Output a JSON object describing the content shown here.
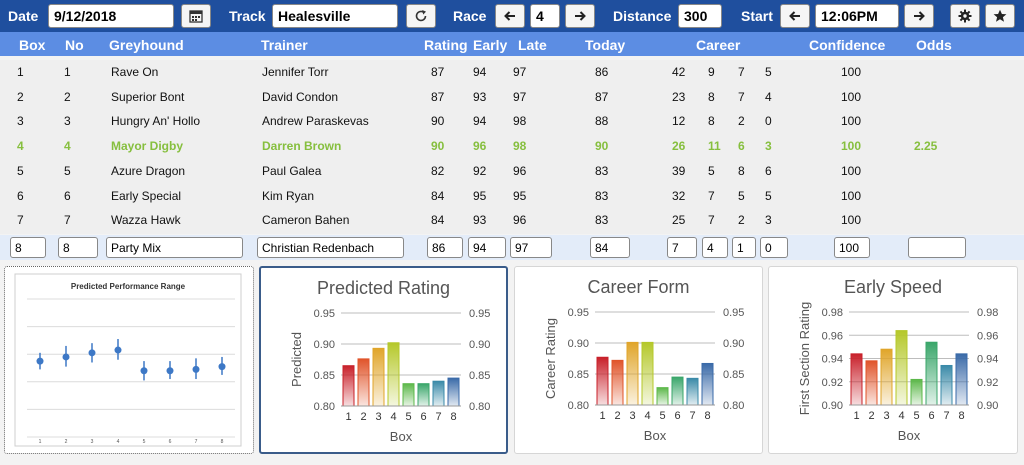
{
  "topbar": {
    "date_label": "Date",
    "date_value": "9/12/2018",
    "track_label": "Track",
    "track_value": "Healesville",
    "race_label": "Race",
    "race_value": "4",
    "distance_label": "Distance",
    "distance_value": "300",
    "start_label": "Start",
    "start_value": "12:06PM",
    "icons": [
      "calendar-icon",
      "refresh-icon",
      "arrow-left-icon",
      "arrow-right-icon",
      "gear-icon",
      "star-icon"
    ]
  },
  "columns": [
    "Box",
    "No",
    "Greyhound",
    "Trainer",
    "Rating",
    "Early",
    "Late",
    "Today",
    "Career",
    "Confidence",
    "Odds"
  ],
  "rows": [
    {
      "box": "1",
      "no": "1",
      "greyhound": "Rave On",
      "trainer": "Jennifer Torr",
      "rating": "87",
      "early": "94",
      "late": "97",
      "today": "86",
      "c1": "42",
      "c2": "9",
      "c3": "7",
      "c4": "5",
      "confidence": "100",
      "odds": ""
    },
    {
      "box": "2",
      "no": "2",
      "greyhound": "Superior Bont",
      "trainer": "David Condon",
      "rating": "87",
      "early": "93",
      "late": "97",
      "today": "87",
      "c1": "23",
      "c2": "8",
      "c3": "7",
      "c4": "4",
      "confidence": "100",
      "odds": ""
    },
    {
      "box": "3",
      "no": "3",
      "greyhound": "Hungry An' Hollo",
      "trainer": "Andrew Paraskevas",
      "rating": "90",
      "early": "94",
      "late": "98",
      "today": "88",
      "c1": "12",
      "c2": "8",
      "c3": "2",
      "c4": "0",
      "confidence": "100",
      "odds": ""
    },
    {
      "box": "4",
      "no": "4",
      "greyhound": "Mayor Digby",
      "trainer": "Darren Brown",
      "rating": "90",
      "early": "96",
      "late": "98",
      "today": "90",
      "c1": "26",
      "c2": "11",
      "c3": "6",
      "c4": "3",
      "confidence": "100",
      "odds": "2.25",
      "highlight": true
    },
    {
      "box": "5",
      "no": "5",
      "greyhound": "Azure Dragon",
      "trainer": "Paul Galea",
      "rating": "82",
      "early": "92",
      "late": "96",
      "today": "83",
      "c1": "39",
      "c2": "5",
      "c3": "8",
      "c4": "6",
      "confidence": "100",
      "odds": ""
    },
    {
      "box": "6",
      "no": "6",
      "greyhound": "Early Special",
      "trainer": "Kim Ryan",
      "rating": "84",
      "early": "95",
      "late": "95",
      "today": "83",
      "c1": "32",
      "c2": "7",
      "c3": "5",
      "c4": "5",
      "confidence": "100",
      "odds": ""
    },
    {
      "box": "7",
      "no": "7",
      "greyhound": "Wazza Hawk",
      "trainer": "Cameron Bahen",
      "rating": "84",
      "early": "93",
      "late": "96",
      "today": "83",
      "c1": "25",
      "c2": "7",
      "c3": "2",
      "c4": "3",
      "confidence": "100",
      "odds": ""
    }
  ],
  "edit_row": {
    "box": "8",
    "no": "8",
    "greyhound": "Party Mix",
    "trainer": "Christian Redenbach",
    "rating": "86",
    "early": "94",
    "late": "97",
    "today": "84",
    "c1": "7",
    "c2": "4",
    "c3": "1",
    "c4": "0",
    "confidence": "100",
    "odds": ""
  },
  "bar_colors": [
    "#c8202a",
    "#e0542a",
    "#e0a52a",
    "#b5c82a",
    "#5cb84a",
    "#3aa66a",
    "#3a8aa8",
    "#3a6aa8"
  ],
  "chart_data": [
    {
      "type": "scatter",
      "title": "Predicted Performance Range",
      "xlabel": "",
      "ylabel": "",
      "x": [
        1,
        2,
        3,
        4,
        5,
        6,
        7,
        8
      ],
      "values": [
        0.55,
        0.58,
        0.61,
        0.63,
        0.48,
        0.48,
        0.49,
        0.51
      ],
      "err_low": [
        0.49,
        0.51,
        0.54,
        0.56,
        0.41,
        0.42,
        0.42,
        0.45
      ],
      "err_high": [
        0.61,
        0.66,
        0.68,
        0.71,
        0.55,
        0.55,
        0.57,
        0.58
      ],
      "ylim": [
        0,
        1
      ],
      "x_tick_labels": [
        "1",
        "2",
        "3",
        "4",
        "5",
        "6",
        "7",
        "8"
      ],
      "grid": true,
      "color": "#3d78c6"
    },
    {
      "type": "bar",
      "title": "Predicted Rating",
      "categories": [
        "1",
        "2",
        "3",
        "4",
        "5",
        "6",
        "7",
        "8"
      ],
      "values": [
        0.865,
        0.876,
        0.893,
        0.902,
        0.836,
        0.836,
        0.84,
        0.845
      ],
      "xlabel": "Box",
      "ylabel": "Predicted",
      "ylim": [
        0.8,
        0.95
      ],
      "yticks": [
        "0.80",
        "0.85",
        "0.90",
        "0.95"
      ],
      "grid": true
    },
    {
      "type": "bar",
      "title": "Career Form",
      "categories": [
        "1",
        "2",
        "3",
        "4",
        "5",
        "6",
        "7",
        "8"
      ],
      "values": [
        0.877,
        0.872,
        0.901,
        0.901,
        0.828,
        0.845,
        0.843,
        0.867
      ],
      "xlabel": "Box",
      "ylabel": "Career Rating",
      "ylim": [
        0.8,
        0.95
      ],
      "yticks": [
        "0.80",
        "0.85",
        "0.90",
        "0.95"
      ],
      "grid": true
    },
    {
      "type": "bar",
      "title": "Early Speed",
      "categories": [
        "1",
        "2",
        "3",
        "4",
        "5",
        "6",
        "7",
        "8"
      ],
      "values": [
        0.944,
        0.938,
        0.948,
        0.964,
        0.922,
        0.954,
        0.934,
        0.944
      ],
      "xlabel": "Box",
      "ylabel": "First Section Rating",
      "ylim": [
        0.9,
        0.98
      ],
      "yticks": [
        "0.90",
        "0.92",
        "0.94",
        "0.96",
        "0.98"
      ],
      "grid": true
    }
  ]
}
